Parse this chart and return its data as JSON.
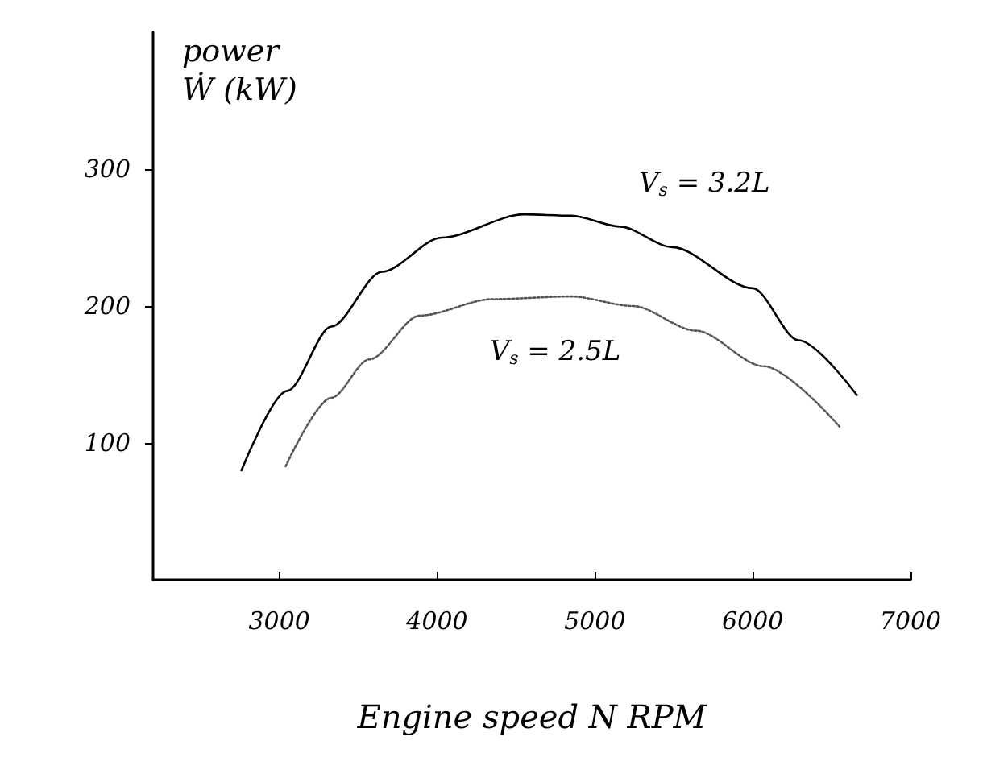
{
  "chart_data": {
    "type": "line",
    "xlabel": "Engine speed N RPM",
    "ylabel": "power\nẆ (kW)",
    "xlim": [
      2200,
      7000
    ],
    "xticks": [
      3000,
      4000,
      5000,
      6000,
      7000
    ],
    "ylim": [
      0,
      400
    ],
    "yticks": [
      100,
      200,
      300
    ],
    "grid": false,
    "legend": false,
    "marker": "none",
    "series": [
      {
        "name": "V$_{s}$ = 3.2L",
        "color": "#000000",
        "line_style": "solid",
        "x": [
          2760,
          3050,
          3330,
          3650,
          4030,
          4550,
          4850,
          5160,
          5490,
          6000,
          6290,
          6660
        ],
        "values": [
          80,
          138,
          185,
          225,
          250,
          267,
          266,
          258,
          243,
          213,
          175,
          135
        ]
      },
      {
        "name": "V$_{s}$ = 2.5L",
        "color": "#555555",
        "line_style": "dotted",
        "x": [
          3040,
          3330,
          3570,
          3890,
          4350,
          4850,
          5240,
          5640,
          6070,
          6550
        ],
        "values": [
          83,
          133,
          161,
          193,
          205,
          207,
          200,
          182,
          156,
          112
        ]
      }
    ]
  }
}
